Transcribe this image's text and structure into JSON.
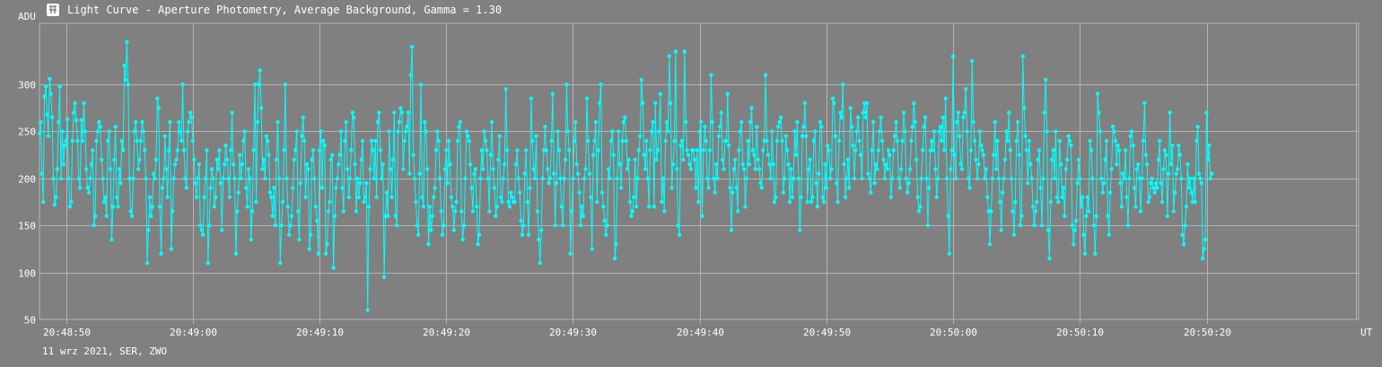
{
  "window": {
    "icon": "light-curve-app-icon",
    "title": "Light Curve - Aperture Photometry, Average Background, Gamma = 1.30"
  },
  "footer": {
    "date_info": "11 wrz 2021, SER, ZWO"
  },
  "colors": {
    "background": "#808080",
    "grid": "#b4b4b4",
    "series": "#00ffff",
    "text": "#ffffff"
  },
  "chart_data": {
    "type": "line",
    "ylabel": "ADU",
    "xlabel": "UT",
    "y_axis": {
      "ticks": [
        50,
        100,
        150,
        200,
        250,
        300
      ],
      "range": [
        50,
        365
      ]
    },
    "x_axis": {
      "tick_labels": [
        "20:48:50",
        "20:49:00",
        "20:49:10",
        "20:49:20",
        "20:49:30",
        "20:49:40",
        "20:49:50",
        "20:50:00",
        "20:50:10",
        "20:50:20"
      ],
      "tick_seconds": [
        50,
        60,
        70,
        80,
        90,
        100,
        110,
        120,
        130,
        140
      ],
      "range_seconds": [
        47.9,
        152.0
      ],
      "extra_gridline_seconds": [
        151.8
      ]
    },
    "grid": true,
    "markers": true,
    "series": [
      {
        "sample_interval_s": 0.1,
        "start_second": 47.9,
        "values": [
          248,
          260,
          205,
          175,
          287,
          298,
          268,
          245,
          306,
          290,
          265,
          200,
          172,
          180,
          210,
          260,
          298,
          200,
          250,
          215,
          235,
          240,
          263,
          200,
          170,
          175,
          240,
          270,
          280,
          262,
          240,
          200,
          190,
          262,
          240,
          280,
          250,
          210,
          190,
          185,
          200,
          215,
          230,
          150,
          160,
          240,
          250,
          260,
          255,
          220,
          200,
          175,
          180,
          160,
          240,
          250,
          210,
          135,
          170,
          220,
          255,
          180,
          170,
          210,
          195,
          240,
          230,
          320,
          305,
          345,
          300,
          200,
          165,
          160,
          200,
          250,
          260,
          240,
          210,
          220,
          240,
          260,
          250,
          230,
          200,
          110,
          145,
          180,
          160,
          170,
          205,
          200,
          220,
          285,
          275,
          170,
          120,
          190,
          200,
          245,
          210,
          180,
          230,
          260,
          125,
          165,
          200,
          215,
          220,
          230,
          260,
          250,
          240,
          300,
          230,
          200,
          190,
          250,
          260,
          270,
          265,
          240,
          220,
          195,
          180,
          200,
          215,
          150,
          145,
          140,
          180,
          200,
          230,
          110,
          150,
          190,
          210,
          200,
          170,
          180,
          220,
          210,
          230,
          195,
          145,
          200,
          215,
          235,
          220,
          200,
          180,
          230,
          270,
          215,
          200,
          120,
          165,
          185,
          225,
          200,
          215,
          240,
          250,
          190,
          170,
          210,
          200,
          135,
          165,
          230,
          300,
          175,
          260,
          300,
          315,
          275,
          210,
          220,
          200,
          245,
          240,
          225,
          185,
          180,
          160,
          190,
          150,
          220,
          260,
          200,
          110,
          150,
          175,
          230,
          300,
          200,
          170,
          140,
          150,
          160,
          190,
          220,
          230,
          250,
          165,
          135,
          195,
          245,
          265,
          240,
          180,
          215,
          210,
          125,
          140,
          220,
          230,
          200,
          170,
          155,
          120,
          230,
          250,
          190,
          240,
          235,
          120,
          130,
          165,
          175,
          220,
          225,
          105,
          160,
          190,
          200,
          215,
          225,
          250,
          190,
          165,
          240,
          260,
          210,
          180,
          200,
          230,
          270,
          265,
          215,
          165,
          200,
          180,
          195,
          220,
          240,
          175,
          180,
          195,
          60,
          170,
          210,
          240,
          230,
          200,
          240,
          180,
          260,
          270,
          230,
          200,
          215,
          95,
          160,
          185,
          160,
          250,
          210,
          180,
          220,
          270,
          160,
          150,
          250,
          260,
          275,
          270,
          210,
          240,
          250,
          255,
          270,
          205,
          310,
          340,
          225,
          200,
          175,
          150,
          140,
          205,
          300,
          180,
          170,
          260,
          250,
          210,
          130,
          170,
          145,
          160,
          180,
          190,
          230,
          250,
          240,
          200,
          165,
          140,
          150,
          210,
          230,
          195,
          240,
          215,
          180,
          170,
          145,
          165,
          175,
          240,
          255,
          260,
          165,
          135,
          150,
          200,
          250,
          245,
          240,
          215,
          190,
          165,
          205,
          210,
          170,
          130,
          140,
          200,
          230,
          210,
          250,
          240,
          230,
          200,
          165,
          225,
          260,
          210,
          190,
          160,
          170,
          220,
          245,
          180,
          175,
          200,
          215,
          295,
          230,
          175,
          170,
          185,
          180,
          175,
          175,
          215,
          230,
          200,
          185,
          155,
          140,
          150,
          205,
          230,
          175,
          140,
          190,
          285,
          240,
          210,
          200,
          245,
          165,
          135,
          110,
          145,
          200,
          230,
          255,
          230,
          210,
          195,
          200,
          240,
          290,
          205,
          150,
          195,
          250,
          230,
          200,
          170,
          150,
          200,
          220,
          300,
          250,
          230,
          120,
          165,
          200,
          240,
          260,
          215,
          205,
          185,
          150,
          170,
          160,
          200,
          210,
          285,
          240,
          205,
          180,
          125,
          225,
          240,
          260,
          175,
          230,
          280,
          300,
          185,
          170,
          155,
          140,
          150,
          210,
          200,
          240,
          250,
          225,
          115,
          130,
          200,
          250,
          215,
          190,
          240,
          260,
          265,
          240,
          210,
          220,
          175,
          160,
          165,
          180,
          220,
          170,
          200,
          230,
          245,
          305,
          280,
          225,
          210,
          240,
          200,
          170,
          230,
          250,
          260,
          170,
          280,
          220,
          230,
          250,
          290,
          175,
          200,
          165,
          240,
          260,
          250,
          330,
          280,
          190,
          215,
          240,
          335,
          210,
          150,
          140,
          235,
          240,
          220,
          335,
          260,
          230,
          225,
          215,
          210,
          230,
          230,
          220,
          190,
          230,
          175,
          250,
          260,
          160,
          230,
          255,
          240,
          200,
          190,
          230,
          310,
          260,
          200,
          185,
          215,
          200,
          245,
          255,
          270,
          220,
          210,
          240,
          240,
          290,
          235,
          190,
          145,
          185,
          210,
          220,
          190,
          165,
          230,
          250,
          260,
          215,
          210,
          170,
          200,
          240,
          215,
          260,
          275,
          230,
          225,
          210,
          255,
          220,
          210,
          195,
          190,
          230,
          240,
          310,
          240,
          225,
          215,
          200,
          250,
          215,
          175,
          180,
          240,
          255,
          260,
          265,
          240,
          185,
          200,
          245,
          230,
          215,
          175,
          210,
          180,
          200,
          250,
          225,
          260,
          200,
          145,
          180,
          245,
          255,
          280,
          245,
          175,
          210,
          220,
          175,
          180,
          240,
          250,
          195,
          170,
          205,
          260,
          255,
          180,
          175,
          215,
          190,
          235,
          230,
          200,
          210,
          285,
          280,
          245,
          195,
          175,
          240,
          270,
          265,
          300,
          215,
          180,
          200,
          220,
          190,
          275,
          255,
          235,
          200,
          230,
          250,
          265,
          240,
          225,
          200,
          270,
          280,
          265,
          280,
          205,
          200,
          185,
          230,
          260,
          195,
          215,
          210,
          230,
          250,
          265,
          240,
          220,
          200,
          215,
          210,
          230,
          225,
          180,
          200,
          230,
          245,
          260,
          240,
          200,
          190,
          210,
          240,
          270,
          250,
          200,
          185,
          195,
          210,
          240,
          255,
          280,
          260,
          220,
          180,
          165,
          170,
          200,
          230,
          255,
          265,
          200,
          150,
          190,
          230,
          240,
          230,
          250,
          210,
          180,
          200,
          250,
          255,
          240,
          265,
          230,
          285,
          200,
          160,
          120,
          210,
          230,
          330,
          225,
          200,
          260,
          270,
          245,
          215,
          210,
          265,
          270,
          295,
          250,
          200,
          190,
          230,
          325,
          260,
          240,
          220,
          200,
          215,
          250,
          235,
          230,
          225,
          200,
          210,
          180,
          165,
          130,
          165,
          200,
          225,
          260,
          210,
          240,
          200,
          175,
          145,
          185,
          200,
          220,
          250,
          240,
          270,
          230,
          200,
          165,
          140,
          175,
          240,
          260,
          225,
          150,
          160,
          330,
          275,
          245,
          230,
          195,
          240,
          215,
          200,
          170,
          150,
          165,
          175,
          220,
          230,
          190,
          150,
          200,
          270,
          305,
          250,
          145,
          115,
          175,
          220,
          230,
          200,
          250,
          180,
          175,
          240,
          215,
          180,
          190,
          160,
          210,
          220,
          245,
          240,
          235,
          150,
          130,
          145,
          155,
          195,
          220,
          200,
          170,
          180,
          140,
          120,
          160,
          180,
          165,
          240,
          230,
          200,
          150,
          120,
          160,
          290,
          270,
          250,
          200,
          185,
          195,
          220,
          240,
          160,
          140,
          185,
          210,
          255,
          250,
          240,
          215,
          235,
          230,
          195,
          170,
          205,
          200,
          230,
          180,
          150,
          200,
          245,
          250,
          235,
          190,
          170,
          210,
          215,
          200,
          165,
          200,
          240,
          280,
          225,
          215,
          175,
          180,
          195,
          200,
          190,
          185,
          195,
          190,
          220,
          240,
          195,
          175,
          210,
          230,
          225,
          160,
          205,
          270,
          215,
          235,
          165,
          185,
          205,
          210,
          235,
          225,
          200,
          140,
          130,
          150,
          170,
          215,
          190,
          200,
          185,
          175,
          200,
          175,
          240,
          255,
          205,
          200,
          195,
          115,
          125,
          135,
          270,
          220,
          235,
          200,
          205
        ]
      }
    ]
  }
}
